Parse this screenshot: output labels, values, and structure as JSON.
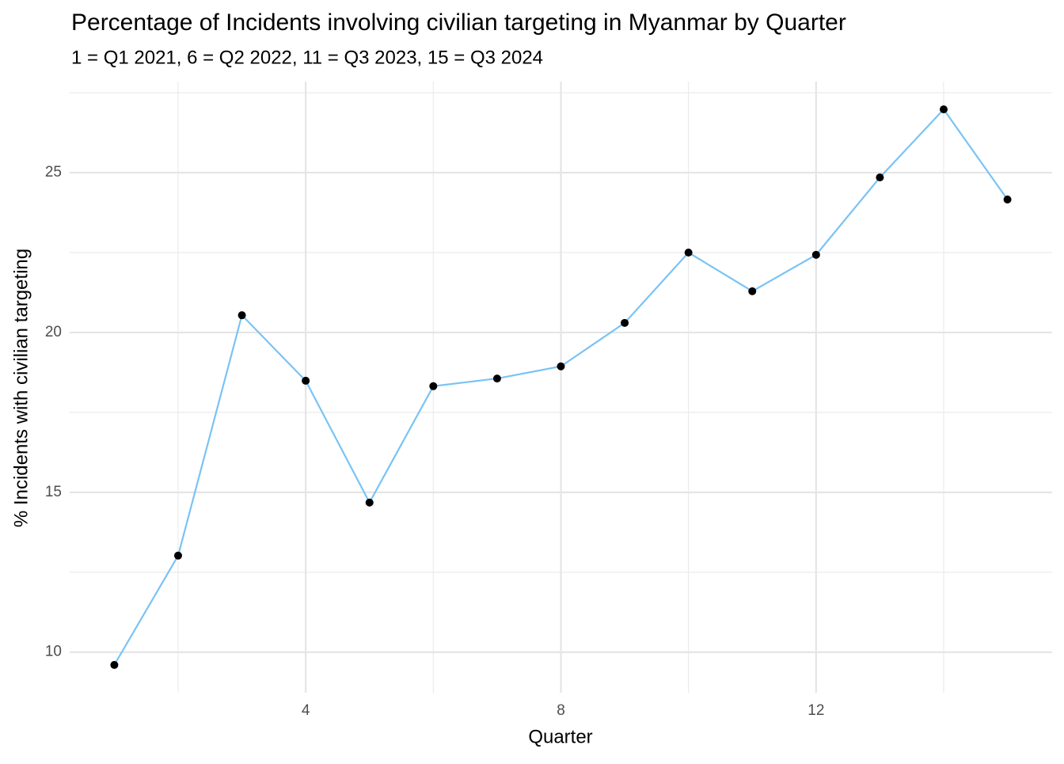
{
  "chart_data": {
    "type": "line",
    "title": "Percentage of Incidents involving civilian targeting in Myanmar by Quarter",
    "subtitle": "1 = Q1 2021, 6 = Q2 2022, 11 = Q3 2023, 15 = Q3 2024",
    "x_label": "Quarter",
    "y_label": "% Incidents with civilian targeting",
    "x": [
      1,
      2,
      3,
      4,
      5,
      6,
      7,
      8,
      9,
      10,
      11,
      12,
      13,
      14,
      15
    ],
    "series": [
      {
        "name": "civilian targeting",
        "color": "#79c3f5",
        "marker_color": "#000000",
        "values": [
          9.6,
          13.02,
          20.54,
          18.49,
          14.68,
          18.32,
          18.56,
          18.94,
          20.3,
          22.5,
          21.29,
          22.43,
          24.85,
          26.98,
          24.16
        ]
      }
    ],
    "xlim": [
      0.3,
      15.7
    ],
    "xticks": [
      4,
      8,
      12
    ],
    "minor_xticks": [
      2,
      6,
      10,
      14
    ],
    "ylim": [
      8.73,
      27.85
    ],
    "yticks": [
      10,
      15,
      20,
      25
    ],
    "minor_yticks": [
      12.5,
      17.5,
      22.5,
      27.5
    ],
    "grid": true
  }
}
